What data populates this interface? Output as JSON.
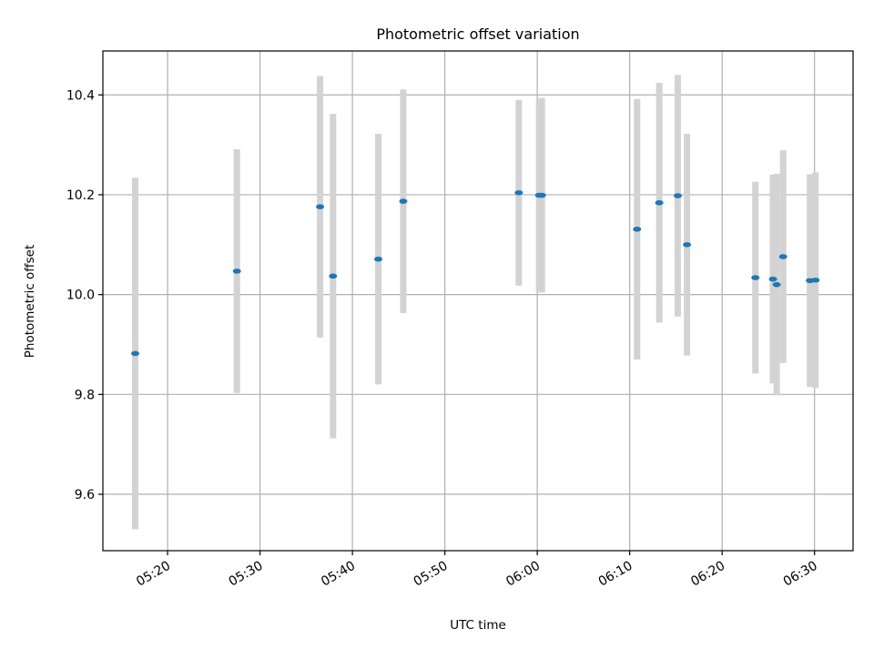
{
  "chart_data": {
    "type": "scatter",
    "title": "Photometric offset variation",
    "xlabel": "UTC time",
    "ylabel": "Photometric offset",
    "grid": true,
    "x_ticks": [
      "05:20",
      "05:30",
      "05:40",
      "05:50",
      "06:00",
      "06:10",
      "06:20",
      "06:30"
    ],
    "y_ticks": [
      "9.6",
      "9.8",
      "10.0",
      "10.2",
      "10.4"
    ],
    "xlim": [
      "05:13:00",
      "06:34:10"
    ],
    "ylim": [
      9.487,
      10.488
    ],
    "colors": {
      "point": "#1f77b4",
      "errorbar": "#d3d3d3",
      "grid": "#b0b0b0"
    },
    "points": [
      {
        "t": "05:16:30",
        "y": 9.882,
        "yerr": 0.352
      },
      {
        "t": "05:27:30",
        "y": 10.047,
        "yerr": 0.244
      },
      {
        "t": "05:36:30",
        "y": 10.176,
        "yerr": 0.262
      },
      {
        "t": "05:37:54",
        "y": 10.037,
        "yerr": 0.325
      },
      {
        "t": "05:42:48",
        "y": 10.071,
        "yerr": 0.251
      },
      {
        "t": "05:45:30",
        "y": 10.187,
        "yerr": 0.224
      },
      {
        "t": "05:58:00",
        "y": 10.204,
        "yerr": 0.186
      },
      {
        "t": "06:00:12",
        "y": 10.199,
        "yerr": 0.193
      },
      {
        "t": "06:00:30",
        "y": 10.199,
        "yerr": 0.195
      },
      {
        "t": "06:10:48",
        "y": 10.131,
        "yerr": 0.261
      },
      {
        "t": "06:13:12",
        "y": 10.184,
        "yerr": 0.24
      },
      {
        "t": "06:15:12",
        "y": 10.198,
        "yerr": 0.242
      },
      {
        "t": "06:16:12",
        "y": 10.1,
        "yerr": 0.222
      },
      {
        "t": "06:23:36",
        "y": 10.034,
        "yerr": 0.192
      },
      {
        "t": "06:25:30",
        "y": 10.031,
        "yerr": 0.209
      },
      {
        "t": "06:25:54",
        "y": 10.02,
        "yerr": 0.222
      },
      {
        "t": "06:26:36",
        "y": 10.076,
        "yerr": 0.213
      },
      {
        "t": "06:29:30",
        "y": 10.028,
        "yerr": 0.213
      },
      {
        "t": "06:30:06",
        "y": 10.029,
        "yerr": 0.216
      }
    ]
  }
}
